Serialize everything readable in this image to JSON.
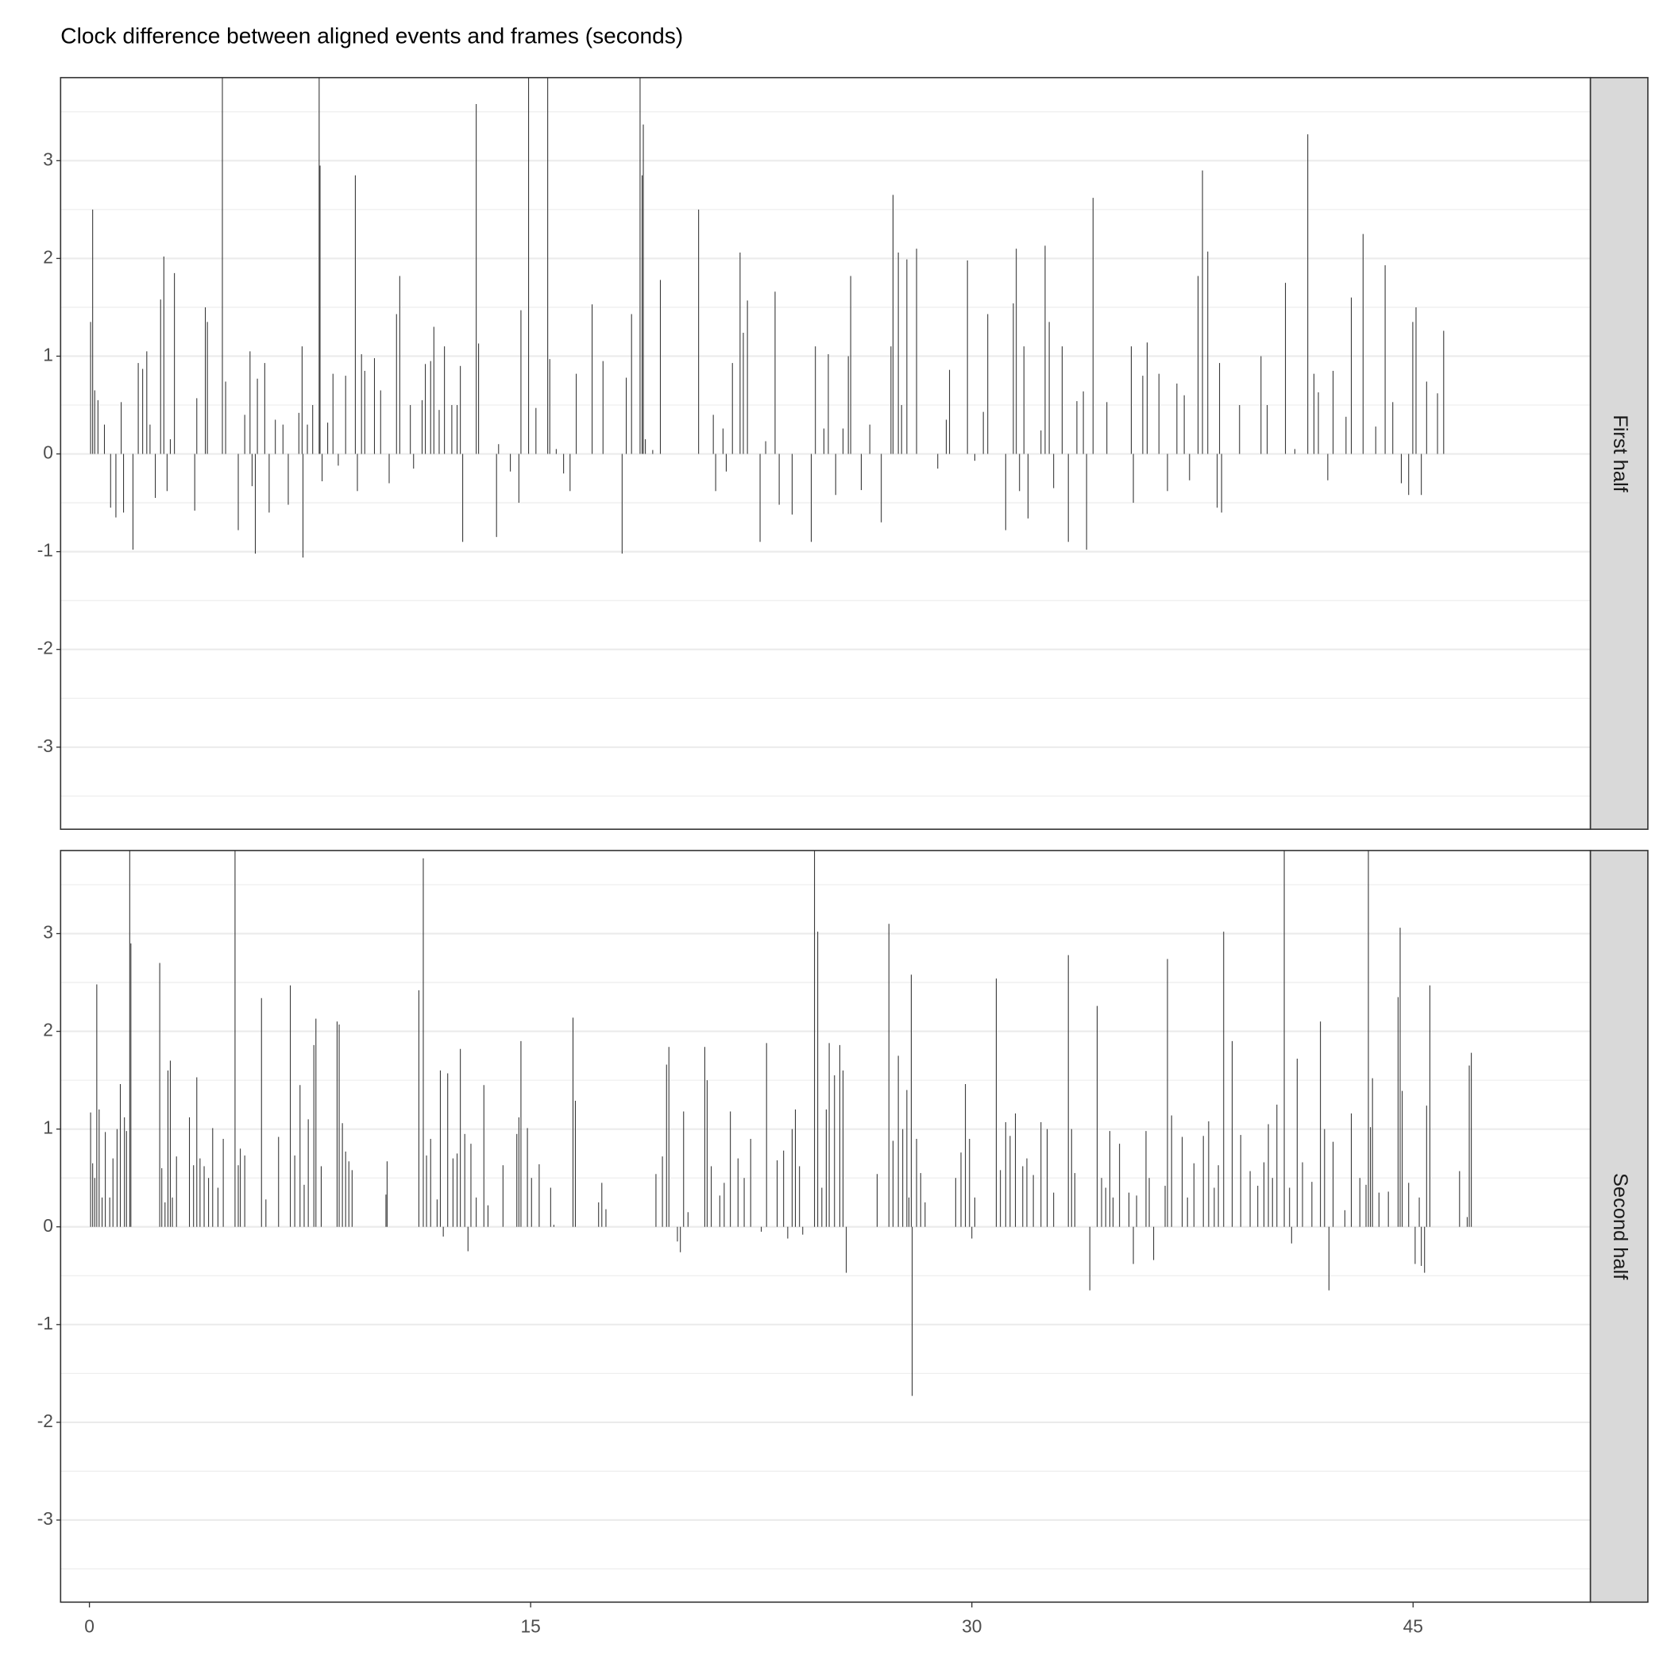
{
  "chart_data": {
    "type": "bar",
    "title": "Clock difference between aligned events and frames (seconds)",
    "xlim": [
      -0.98,
      51.03
    ],
    "xticks": [
      0,
      15,
      30,
      45
    ],
    "ylim": [
      -3.84,
      3.85
    ],
    "yticks": [
      -3,
      -2,
      -1,
      0,
      1,
      2,
      3
    ],
    "grid": true,
    "color": "#333333",
    "facets": [
      {
        "label": "First half",
        "x": [
          0.04,
          0.11,
          0.18,
          0.29,
          0.51,
          0.72,
          0.9,
          1.08,
          1.16,
          1.48,
          1.66,
          1.81,
          1.95,
          2.06,
          2.24,
          2.42,
          2.53,
          2.64,
          2.75,
          2.89,
          3.58,
          3.65,
          3.94,
          4.01,
          4.52,
          4.63,
          5.06,
          5.28,
          5.46,
          5.53,
          5.64,
          5.71,
          5.96,
          6.11,
          6.32,
          6.58,
          6.76,
          7.12,
          7.23,
          7.26,
          7.41,
          7.59,
          7.81,
          7.84,
          7.91,
          8.1,
          8.28,
          8.46,
          8.71,
          9.04,
          9.11,
          9.25,
          9.36,
          9.69,
          9.9,
          10.19,
          10.44,
          10.55,
          10.91,
          11.02,
          11.31,
          11.42,
          11.6,
          11.71,
          11.89,
          12.07,
          12.32,
          12.5,
          12.61,
          12.69,
          13.15,
          13.23,
          13.84,
          13.91,
          14.31,
          14.6,
          14.67,
          14.93,
          15.18,
          15.58,
          15.65,
          15.87,
          16.12,
          16.34,
          16.55,
          17.09,
          17.46,
          18.11,
          18.25,
          18.43,
          18.72,
          18.79,
          18.83,
          18.9,
          19.15,
          19.41,
          20.71,
          21.21,
          21.29,
          21.54,
          21.65,
          21.86,
          22.12,
          22.23,
          22.37,
          22.8,
          22.99,
          23.31,
          23.45,
          23.89,
          24.54,
          24.68,
          24.97,
          25.12,
          25.37,
          25.62,
          25.8,
          25.88,
          26.24,
          26.53,
          26.92,
          27.25,
          27.32,
          27.5,
          27.61,
          27.79,
          28.12,
          28.84,
          29.13,
          29.24,
          29.85,
          30.1,
          30.39,
          30.54,
          31.15,
          31.41,
          31.51,
          31.62,
          31.77,
          31.91,
          32.35,
          32.49,
          32.63,
          32.78,
          33.07,
          33.28,
          33.57,
          33.79,
          33.9,
          34.12,
          34.59,
          35.42,
          35.49,
          35.81,
          35.96,
          36.36,
          36.65,
          36.97,
          37.22,
          37.4,
          37.69,
          37.84,
          38.02,
          38.34,
          38.42,
          38.49,
          39.1,
          39.83,
          40.04,
          40.66,
          40.98,
          41.42,
          41.63,
          41.78,
          42.1,
          42.28,
          42.72,
          42.9,
          43.3,
          43.73,
          44.05,
          44.31,
          44.6,
          44.85,
          44.99,
          45.1,
          45.28,
          45.46,
          45.83,
          46.04
        ],
        "values": [
          1.35,
          2.5,
          0.65,
          0.55,
          0.3,
          -0.55,
          -0.65,
          0.53,
          -0.6,
          -0.98,
          0.93,
          0.87,
          1.05,
          0.3,
          -0.45,
          1.58,
          2.02,
          -0.38,
          0.15,
          1.85,
          -0.58,
          0.57,
          1.5,
          1.35,
          4,
          0.74,
          -0.78,
          0.4,
          1.05,
          -0.33,
          -1.02,
          0.77,
          0.93,
          -0.6,
          0.35,
          0.3,
          -0.52,
          0.42,
          1.1,
          -1.06,
          0.3,
          0.5,
          4,
          2.95,
          -0.28,
          0.32,
          0.82,
          -0.12,
          0.8,
          2.85,
          -0.38,
          1.02,
          0.85,
          0.98,
          0.65,
          -0.3,
          1.43,
          1.82,
          0.5,
          -0.15,
          0.55,
          0.92,
          0.95,
          1.3,
          0.45,
          1.1,
          0.5,
          0.5,
          0.9,
          -0.9,
          3.58,
          1.13,
          -0.85,
          0.1,
          -0.18,
          -0.5,
          1.47,
          4,
          0.47,
          4,
          0.97,
          0.05,
          -0.2,
          -0.38,
          0.82,
          1.53,
          0.95,
          -1.02,
          0.78,
          1.43,
          4,
          2.85,
          3.37,
          0.15,
          0.04,
          1.78,
          2.5,
          0.4,
          -0.38,
          0.26,
          -0.18,
          0.93,
          2.06,
          1.24,
          1.57,
          -0.9,
          0.13,
          1.66,
          -0.52,
          -0.62,
          -0.9,
          1.1,
          0.26,
          1.02,
          -0.42,
          0.26,
          1.0,
          1.82,
          -0.37,
          0.3,
          -0.7,
          1.1,
          2.65,
          2.06,
          0.5,
          1.99,
          2.1,
          -0.15,
          0.35,
          0.86,
          1.98,
          -0.07,
          0.43,
          1.43,
          -0.78,
          1.54,
          2.1,
          -0.38,
          1.1,
          -0.66,
          0.24,
          2.13,
          1.35,
          -0.35,
          1.1,
          -0.9,
          0.54,
          0.64,
          -0.98,
          2.62,
          0.53,
          1.1,
          -0.5,
          0.8,
          1.14,
          0.82,
          -0.38,
          0.72,
          0.6,
          -0.27,
          1.82,
          2.9,
          2.07,
          -0.55,
          0.93,
          -0.6,
          0.5,
          1.0,
          0.5,
          1.75,
          0.05,
          3.27,
          0.82,
          0.63,
          -0.27,
          0.85,
          0.38,
          1.6,
          2.25,
          0.28,
          1.93,
          0.53,
          -0.3,
          -0.42,
          1.35,
          1.5,
          -0.42,
          0.74,
          0.62,
          1.26
        ]
      },
      {
        "label": "Second half",
        "x": [
          0.04,
          0.11,
          0.18,
          0.25,
          0.33,
          0.43,
          0.54,
          0.69,
          0.8,
          0.94,
          1.05,
          1.19,
          1.26,
          1.37,
          1.41,
          2.39,
          2.46,
          2.57,
          2.67,
          2.75,
          2.82,
          2.96,
          3.4,
          3.54,
          3.65,
          3.76,
          3.9,
          4.05,
          4.19,
          4.37,
          4.55,
          4.95,
          5.06,
          5.13,
          5.28,
          5.85,
          6.0,
          6.43,
          6.83,
          6.98,
          7.16,
          7.3,
          7.44,
          7.63,
          7.7,
          7.88,
          8.42,
          8.49,
          8.6,
          8.71,
          8.82,
          8.93,
          10.08,
          10.12,
          11.2,
          11.35,
          11.46,
          11.6,
          11.82,
          11.93,
          12.03,
          12.18,
          12.36,
          12.5,
          12.61,
          12.76,
          12.87,
          12.97,
          13.15,
          13.41,
          13.55,
          14.06,
          14.53,
          14.6,
          14.67,
          14.89,
          15.03,
          15.29,
          15.68,
          15.79,
          16.44,
          16.52,
          17.31,
          17.42,
          17.56,
          19.26,
          19.48,
          19.62,
          19.7,
          19.99,
          20.09,
          20.2,
          20.35,
          20.92,
          21.0,
          21.14,
          21.43,
          21.58,
          21.79,
          22.05,
          22.26,
          22.48,
          22.84,
          23.02,
          23.38,
          23.6,
          23.74,
          23.89,
          24.0,
          24.14,
          24.25,
          24.65,
          24.76,
          24.9,
          25.05,
          25.15,
          25.33,
          25.51,
          25.62,
          25.73,
          26.78,
          27.18,
          27.32,
          27.5,
          27.65,
          27.79,
          27.86,
          27.94,
          27.97,
          28.12,
          28.26,
          28.41,
          29.45,
          29.63,
          29.78,
          29.92,
          30.0,
          30.1,
          30.83,
          30.97,
          31.15,
          31.3,
          31.48,
          31.73,
          31.87,
          32.09,
          32.35,
          32.56,
          32.78,
          33.28,
          33.39,
          33.5,
          34.01,
          34.26,
          34.41,
          34.55,
          34.69,
          34.8,
          35.02,
          35.34,
          35.49,
          35.6,
          35.92,
          36.03,
          36.18,
          36.57,
          36.65,
          36.79,
          37.15,
          37.33,
          37.55,
          37.87,
          38.05,
          38.24,
          38.38,
          38.56,
          38.85,
          39.14,
          39.46,
          39.72,
          39.93,
          40.08,
          40.22,
          40.37,
          40.62,
          40.8,
          40.87,
          41.06,
          41.24,
          41.56,
          41.85,
          41.99,
          42.14,
          42.28,
          42.68,
          42.9,
          43.19,
          43.4,
          43.48,
          43.55,
          43.62,
          43.84,
          44.16,
          44.49,
          44.56,
          44.63,
          44.85,
          45.07,
          45.21,
          45.28,
          45.39,
          45.46,
          45.57,
          46.58,
          46.84,
          46.91,
          46.98
        ],
        "values": [
          1.17,
          0.65,
          0.5,
          2.48,
          1.2,
          0.3,
          0.97,
          0.3,
          0.7,
          1.0,
          1.46,
          1.12,
          0.98,
          4,
          2.9,
          2.7,
          0.6,
          0.25,
          1.6,
          1.7,
          0.3,
          0.72,
          1.12,
          0.63,
          1.53,
          0.7,
          0.62,
          0.5,
          1.01,
          0.4,
          0.9,
          4,
          0.63,
          0.8,
          0.73,
          2.34,
          0.28,
          0.92,
          2.47,
          0.73,
          1.45,
          0.43,
          1.1,
          1.86,
          2.13,
          0.62,
          2.1,
          2.07,
          1.06,
          0.77,
          0.67,
          0.58,
          0.33,
          0.67,
          2.42,
          3.77,
          0.73,
          0.9,
          0.28,
          1.6,
          -0.1,
          1.57,
          0.7,
          0.75,
          1.82,
          0.95,
          -0.25,
          0.85,
          0.3,
          1.45,
          0.22,
          0.63,
          0.95,
          1.12,
          1.9,
          1.01,
          0.5,
          0.64,
          0.4,
          0.02,
          2.14,
          1.29,
          0.25,
          0.45,
          0.18,
          0.54,
          0.72,
          1.66,
          1.84,
          -0.15,
          -0.26,
          1.18,
          0.15,
          1.84,
          1.5,
          0.62,
          0.32,
          0.45,
          1.18,
          0.7,
          0.5,
          0.9,
          -0.05,
          1.88,
          0.68,
          0.78,
          -0.12,
          1.0,
          1.2,
          0.62,
          -0.08,
          4,
          3.02,
          0.4,
          1.2,
          1.88,
          1.55,
          1.86,
          1.6,
          -0.47,
          0.54,
          3.1,
          0.88,
          1.75,
          1.0,
          1.4,
          0.3,
          2.58,
          -1.73,
          0.9,
          0.55,
          0.25,
          0.5,
          0.76,
          1.46,
          0.9,
          -0.12,
          0.3,
          2.54,
          0.58,
          1.07,
          0.93,
          1.16,
          0.62,
          0.7,
          0.53,
          1.07,
          1.0,
          0.35,
          2.78,
          1.0,
          0.55,
          -0.65,
          2.26,
          0.5,
          0.4,
          0.98,
          0.3,
          0.85,
          0.35,
          -0.38,
          0.32,
          0.98,
          0.5,
          -0.34,
          0.42,
          2.74,
          1.14,
          0.92,
          0.3,
          0.65,
          0.93,
          1.08,
          0.4,
          0.63,
          3.02,
          1.9,
          0.94,
          0.57,
          0.42,
          0.66,
          1.05,
          0.5,
          1.25,
          4,
          0.4,
          -0.17,
          1.72,
          0.66,
          0.46,
          2.1,
          1.0,
          -0.65,
          0.87,
          0.17,
          1.16,
          0.5,
          0.43,
          4,
          1.02,
          1.52,
          0.35,
          0.36,
          2.35,
          3.06,
          1.39,
          0.45,
          -0.38,
          0.3,
          -0.4,
          -0.47,
          1.24,
          2.47,
          0.57,
          0.1,
          1.65,
          1.78
        ]
      }
    ]
  }
}
